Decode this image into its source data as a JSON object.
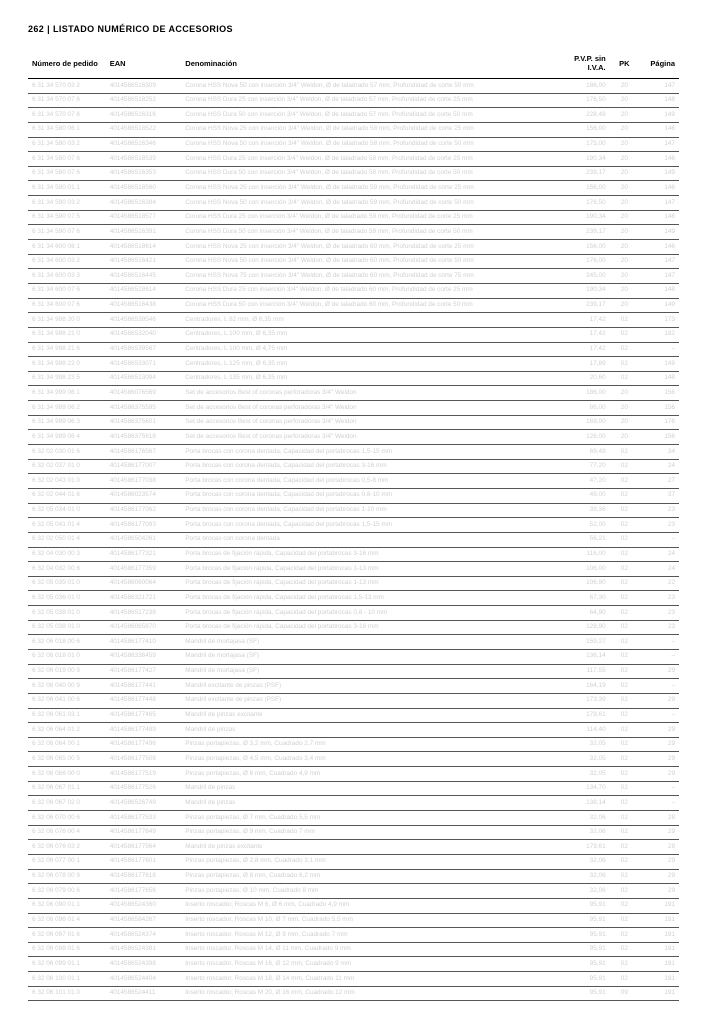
{
  "header": {
    "page_no": "262",
    "title": "LISTADO NUMÉRICO DE ACCESORIOS"
  },
  "table": {
    "columns": {
      "numero": "Número de pedido",
      "ean": "EAN",
      "denom": "Denominación",
      "pvp": "P.V.P. sin I.V.A.",
      "pk": "PK",
      "pagina": "Página"
    },
    "rows": [
      [
        "6 31 34 570 03 2",
        "4014586516309",
        "Corona HSS Nova 50 con inserción 3/4\" Weldon, Ø de taladrado 57 mm, Profundidad de corte 50 mm",
        "186,00",
        "20",
        "147"
      ],
      [
        "6 31 34 570 07 6",
        "4014586518252",
        "Corona HSS Dura 25 con inserción 3/4\" Weldon, Ø de taladrado 57 mm, Profundidad de corte 25 mm",
        "176,50",
        "20",
        "148"
      ],
      [
        "6 31 34 570 07 6",
        "4014586516316",
        "Corona HSS Dura 50 con inserción 3/4\" Weldon, Ø de taladrado 57 mm, Profundidad de corte 50 mm",
        "228,49",
        "20",
        "149"
      ],
      [
        "6 31 34 580 06 1",
        "4014586518522",
        "Corona HSS Nova 25 con inserción 3/4\" Weldon, Ø de taladrado 58 mm, Profundidad de corte 25 mm",
        "156,00",
        "20",
        "146"
      ],
      [
        "6 31 34 580 03 2",
        "4014586516346",
        "Corona HSS Nova 50 con inserción 3/4\" Weldon, Ø de taladrado 58 mm, Profundidad de corte 50 mm",
        "175,00",
        "20",
        "147"
      ],
      [
        "6 31 34 580 07 6",
        "4014586518539",
        "Corona HSS Dura 25 con inserción 3/4\" Weldon, Ø de taladrado 58 mm, Profundidad de corte 25 mm",
        "190,34",
        "20",
        "146"
      ],
      [
        "6 31 34 580 07 6",
        "4014586516353",
        "Corona HSS Dura 50 con inserción 3/4\" Weldon, Ø de taladrado 58 mm, Profundidad de corte 50 mm",
        "239,17",
        "20",
        "149"
      ],
      [
        "6 31 34 590 01 1",
        "4014586518560",
        "Corona HSS Nova 25 con inserción 3/4\" Weldon, Ø de taladrado 59 mm, Profundidad de corte 25 mm",
        "156,00",
        "20",
        "146"
      ],
      [
        "6 31 34 590 03 2",
        "4014586516384",
        "Corona HSS Nova 50 con inserción 3/4\" Weldon, Ø de taladrado 59 mm, Profundidad de corte 50 mm",
        "176,50",
        "20",
        "147"
      ],
      [
        "6 31 34 590 07 5",
        "4014586518577",
        "Corona HSS Dura 25 con inserción 3/4\" Weldon, Ø de taladrado 59 mm, Profundidad de corte 25 mm",
        "190,34",
        "20",
        "148"
      ],
      [
        "6 31 34 590 07 6",
        "4014586516391",
        "Corona HSS Dura 50 con inserción 3/4\" Weldon, Ø de taladrado 59 mm, Profundidad de corte 50 mm",
        "239,17",
        "20",
        "149"
      ],
      [
        "6 31 34 600 08 1",
        "4014586518614",
        "Corona HSS Nova 25 con inserción 3/4\" Weldon, Ø de taladrado 60 mm, Profundidad de corte 25 mm",
        "156,00",
        "20",
        "146"
      ],
      [
        "6 31 34 600 03 2",
        "4014586516421",
        "Corona HSS Nova 50 con inserción 3/4\" Weldon, Ø de taladrado 60 mm, Profundidad de corte 50 mm",
        "176,00",
        "20",
        "147"
      ],
      [
        "6 31 34 600 03 3",
        "4014586516445",
        "Corona HSS Nova 75 con inserción 3/4\" Weldon, Ø de taladrado 60 mm, Profundidad de corte 75 mm",
        "245,00",
        "20",
        "147"
      ],
      [
        "6 31 34 600 07 6",
        "4014586518614",
        "Corona HSS Dura 25 con inserción 3/4\" Weldon, Ø de taladrado 60 mm, Profundidad de corte 25 mm",
        "190,34",
        "20",
        "148"
      ],
      [
        "6 31 34 600 07 6",
        "4014586516438",
        "Corona HSS Dura 50 con inserción 3/4\" Weldon, Ø de taladrado 60 mm, Profundidad de corte 50 mm",
        "239,17",
        "20",
        "149"
      ],
      [
        "6 31 34 998 20 0",
        "4014586539546",
        "Centradores, L 82 mm, Ø 6,35 mm",
        "17,42",
        "02",
        "173"
      ],
      [
        "6 31 34 998 21 0",
        "4014586532040",
        "Centradores, L 100 mm, Ø 6,35 mm",
        "17,42",
        "02",
        "182"
      ],
      [
        "6 31 34 998 21 6",
        "4014586539567",
        "Centradores, L 100 mm, Ø 4,75 mm",
        "17,42",
        "02",
        "–"
      ],
      [
        "6 31 34 998 22 0",
        "4014586533071",
        "Centradores, L 125 mm, Ø 6,35 mm",
        "17,89",
        "02",
        "149"
      ],
      [
        "6 31 34 998 23 5",
        "4014586513094",
        "Centradores, L 135 mm, Ø 6,35 mm",
        "20,60",
        "02",
        "148"
      ],
      [
        "6 31 34 999 06 1",
        "4014586076569",
        "Set de accesorios Best of coronas perforadoras 3/4\" Weldon",
        "186,00",
        "20",
        "156"
      ],
      [
        "6 31 34 999 06 2",
        "4014586375595",
        "Set de accesorios Best of coronas perforadoras 3/4\" Weldon",
        "86,00",
        "20",
        "156"
      ],
      [
        "6 31 34 999 06 3",
        "4014586375601",
        "Set de accesorios Best of coronas perforadoras 3/4\" Weldon",
        "169,00",
        "20",
        "176"
      ],
      [
        "6 31 34 999 06 4",
        "4014586375618",
        "Set de accesorios Best of coronas perforadoras 3/4\" Weldon",
        "126,00",
        "20",
        "156"
      ],
      [
        "6 32 02 030 01 6",
        "4014586176567",
        "Porta brocas con corona dentada, Capacidad del portabrocas 1,5-15 mm",
        "69,49",
        "02",
        "34"
      ],
      [
        "6 32 02 037 01 0",
        "4014586177007",
        "Porta brocas con corona dentada, Capacidad del portabrocas 3-16 mm",
        "77,20",
        "02",
        "24"
      ],
      [
        "6 32 02 043 01 0",
        "4014586177038",
        "Porta brocas con corona dentada, Capacidad del portabrocas 0,5-8 mm",
        "47,20",
        "02",
        "27"
      ],
      [
        "6 32 02 044 01 6",
        "4014586023574",
        "Porta brocas con corona dentada, Capacidad del portabrocas 0,8-10 mm",
        "49,00",
        "02",
        "37"
      ],
      [
        "6 32 05 034 01 0",
        "4014586177062",
        "Porta brocas con corona dentada, Capacidad del portabrocas 1-10 mm",
        "39,36",
        "02",
        "23"
      ],
      [
        "6 32 05 041 01 4",
        "4014586177093",
        "Porta brocas con corona dentada, Capacidad del portabrocas 1,5-15 mm",
        "52,00",
        "02",
        "23"
      ],
      [
        "6 32 02 050 01 4",
        "4014586504261",
        "Porta brocas con corona dentada",
        "56,21",
        "02",
        "–"
      ],
      [
        "6 32 04 030 00 3",
        "4014586177321",
        "Porta brocas de fijación rápida, Capacidad del portabrocas 3-16 mm",
        "116,00",
        "02",
        "24"
      ],
      [
        "6 32 04 032 00 6",
        "4014586177359",
        "Porta brocas de fijación rápida, Capacidad del portabrocas 1-13 mm",
        "106,00",
        "02",
        "24"
      ],
      [
        "6 32 05 035 01 0",
        "4014586060064",
        "Porta brocas de fijación rápida, Capacidad del portabrocas 1-13 mm",
        "106,90",
        "02",
        "22"
      ],
      [
        "6 32 05 036 01 0",
        "4014586321721",
        "Porta brocas de fijación rápida, Capacidad del portabrocas 1,5-13 mm",
        "67,30",
        "02",
        "23"
      ],
      [
        "6 32 05 038 01 0",
        "4014586517238",
        "Porta brocas de fijación rápida, Capacidad del portabrocas 0,8 - 10 mm",
        "64,90",
        "02",
        "23"
      ],
      [
        "6 32 05 038 01 0",
        "4014586065870",
        "Porta brocas de fijación rápida, Capacidad del portabrocas 3-16 mm",
        "128,90",
        "02",
        "23"
      ],
      [
        "6 32 06 018 00 6",
        "4014586177410",
        "Mandril de mortajasa (SF)",
        "159,27",
        "02",
        "–"
      ],
      [
        "6 32 06 018 01 0",
        "4014586336459",
        "Mandril de mortajasa (SF)",
        "136,14",
        "02",
        "–"
      ],
      [
        "6 32 06 019 00 9",
        "4014586177427",
        "Mandril de mortajasa (SF)",
        "117,55",
        "02",
        "29"
      ],
      [
        "6 32 06 040 00 9",
        "4014586177441",
        "Mandril excitante de pinzas (PSF)",
        "164,19",
        "02",
        "–"
      ],
      [
        "6 32 06 041 00 6",
        "4014586177448",
        "Mandril excitante de pinzas (PSF)",
        "173,39",
        "02",
        "29"
      ],
      [
        "6 32 06 061 03 1",
        "4014586177465",
        "Mandril de pinzas excitante",
        "179,61",
        "02",
        "–"
      ],
      [
        "6 32 06 064 01 2",
        "4014586177489",
        "Mandril de pinzas",
        "114,40",
        "02",
        "29"
      ],
      [
        "6 32 06 064 00 1",
        "4014586177496",
        "Pinzas portapiezas, Ø 3,2 mm, Cuadrado 2,7 mm",
        "32,05",
        "02",
        "29"
      ],
      [
        "6 32 06 065 00 5",
        "4014586177508",
        "Pinzas portapiezas, Ø 4,5 mm, Cuadrado 3,4 mm",
        "32,05",
        "02",
        "29"
      ],
      [
        "6 32 06 066 00 0",
        "4014586177519",
        "Pinzas portapiezas, Ø 6 mm, Cuadrado 4,9 mm",
        "32,05",
        "02",
        "29"
      ],
      [
        "6 32 06 067 01 1",
        "4014586177526",
        "Mandril de pinzas",
        "134,70",
        "02",
        "–"
      ],
      [
        "6 32 06 067 02 0",
        "4014586526749",
        "Mandril de pinzas",
        "138,14",
        "02",
        "–"
      ],
      [
        "6 32 06 070 00 6",
        "4014586177533",
        "Pinzas portapiezas, Ø 7 mm, Cuadrado 5,5 mm",
        "32,06",
        "02",
        "28"
      ],
      [
        "6 32 06 076 00 4",
        "4014586177649",
        "Pinzas portapiezas, Ø 9 mm, Cuadrado 7 mm",
        "32,06",
        "02",
        "29"
      ],
      [
        "6 32 06 076 03 2",
        "4014586177564",
        "Mandril de pinzas excitante",
        "179,61",
        "02",
        "28"
      ],
      [
        "6 32 06 077 00 1",
        "4014586177601",
        "Pinzas portapiezas, Ø 2,8 mm, Cuadrado 3,1 mm",
        "32,06",
        "02",
        "29"
      ],
      [
        "6 32 06 078 00 9",
        "4014586177618",
        "Pinzas portapiezas, Ø 8 mm, Cuadrado 6,2 mm",
        "32,06",
        "02",
        "29"
      ],
      [
        "6 32 06 079 00 6",
        "4014586177656",
        "Pinzas portapiezas, Ø 10 mm, Cuadrado 8 mm",
        "32,06",
        "02",
        "29"
      ],
      [
        "6 32 06 090 01 1",
        "4014586524360",
        "Inserto roscador, Roscas M 6, Ø 6 mm, Cuadrado 4,9 mm",
        "95,91",
        "02",
        "191"
      ],
      [
        "6 32 06 096 01 4",
        "4014586584267",
        "Inserto roscador, Roscas M 10, Ø 7 mm, Cuadrado 5,5 mm",
        "95,91",
        "02",
        "191"
      ],
      [
        "6 32 06 097 01 6",
        "4014586524374",
        "Inserto roscador, Roscas M 12, Ø 9 mm, Cuadrado 7 mm",
        "95,91",
        "02",
        "191"
      ],
      [
        "6 32 06 098 01 6",
        "4014586524381",
        "Inserto roscador, Roscas M 14, Ø 11 mm, Cuadrado 9 mm",
        "95,91",
        "02",
        "191"
      ],
      [
        "6 32 06 099 01 1",
        "4014586524398",
        "Inserto roscador, Roscas M 16, Ø 12 mm, Cuadrado 9 mm",
        "95,91",
        "02",
        "191"
      ],
      [
        "6 32 06 100 01 1",
        "4014586524404",
        "Inserto roscador, Roscas M 18, Ø 14 mm, Cuadrado 11 mm",
        "95,91",
        "02",
        "191"
      ],
      [
        "6 32 06 101 01 0",
        "4014586524411",
        "Inserto roscador, Roscas M 20, Ø 16 mm, Cuadrado 12 mm",
        "95,91",
        "09",
        "191"
      ]
    ]
  },
  "style": {
    "body_bg": "#ffffff",
    "text_muted": "#d0d0d0",
    "header_text": "#000000",
    "row_border": "#555555",
    "font_size_header": 9,
    "font_size_th": 7.5,
    "font_size_td": 6.4
  }
}
